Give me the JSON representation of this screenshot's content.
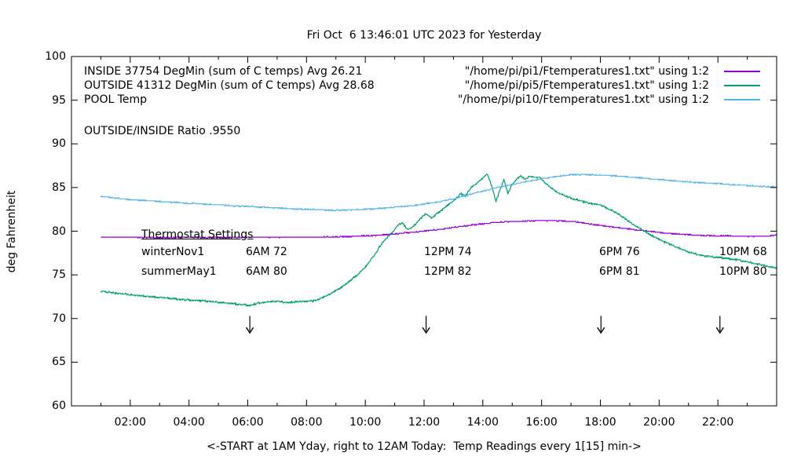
{
  "title": "Fri Oct  6 13:46:01 UTC 2023 for Yesterday",
  "ylabel": "deg Fahrenheit",
  "xlabel": "<-START at 1AM Yday, right to 12AM Today:  Temp Readings every 1[15] min->",
  "annotations": {
    "ratio": "OUTSIDE/INSIDE Ratio .9550",
    "thermostat": {
      "heading": "Thermostat Settings",
      "rows": [
        {
          "label": "winterNov1",
          "cells": [
            "6AM 72",
            "12PM 74",
            "6PM 76",
            "10PM 68"
          ]
        },
        {
          "label": "summerMay1",
          "cells": [
            "6AM 80",
            "12PM 82",
            "6PM 81",
            "10PM 80"
          ]
        }
      ]
    }
  },
  "chart_data": {
    "type": "line",
    "background": "#ffffff",
    "axis_color": "#000000",
    "x_axis": {
      "range_hours": [
        0,
        24
      ],
      "major_tick_hours": [
        2,
        4,
        6,
        8,
        10,
        12,
        14,
        16,
        18,
        20,
        22
      ],
      "major_tick_labels": [
        "02:00",
        "04:00",
        "06:00",
        "08:00",
        "10:00",
        "12:00",
        "14:00",
        "16:00",
        "18:00",
        "20:00",
        "22:00"
      ],
      "minor_tick_hours": [
        1,
        3,
        5,
        7,
        9,
        11,
        13,
        15,
        17,
        19,
        21,
        23
      ]
    },
    "y_axis": {
      "range": [
        60,
        100
      ],
      "ticks": [
        60,
        65,
        70,
        75,
        80,
        85,
        90,
        95,
        100
      ],
      "tick_labels": [
        "60",
        "65",
        "70",
        "75",
        "80",
        "85",
        "90",
        "95",
        "100"
      ]
    },
    "series": [
      {
        "name": "INSIDE",
        "label": "INSIDE 37754 DegMin (sum of C temps) Avg 26.21",
        "file_label": "\"/home/pi/pi1/Ftemperatures1.txt\" using 1:2",
        "color": "#9400d3",
        "noise": 0.045,
        "keypoints": [
          [
            1,
            79.3
          ],
          [
            2,
            79.3
          ],
          [
            3,
            79.25
          ],
          [
            4,
            79.3
          ],
          [
            5,
            79.25
          ],
          [
            6,
            79.3
          ],
          [
            7,
            79.3
          ],
          [
            8,
            79.3
          ],
          [
            9,
            79.35
          ],
          [
            9.5,
            79.4
          ],
          [
            10,
            79.45
          ],
          [
            10.5,
            79.55
          ],
          [
            11,
            79.7
          ],
          [
            11.5,
            79.85
          ],
          [
            12,
            80.0
          ],
          [
            12.5,
            80.2
          ],
          [
            13,
            80.45
          ],
          [
            13.5,
            80.65
          ],
          [
            14,
            80.85
          ],
          [
            14.5,
            81.0
          ],
          [
            15,
            81.1
          ],
          [
            15.5,
            81.15
          ],
          [
            16,
            81.2
          ],
          [
            16.5,
            81.2
          ],
          [
            17,
            81.1
          ],
          [
            17.3,
            81.0
          ],
          [
            17.7,
            80.8
          ],
          [
            18,
            80.65
          ],
          [
            18.5,
            80.45
          ],
          [
            19,
            80.25
          ],
          [
            19.5,
            80.05
          ],
          [
            20,
            79.85
          ],
          [
            20.5,
            79.7
          ],
          [
            21,
            79.6
          ],
          [
            21.5,
            79.5
          ],
          [
            22,
            79.45
          ],
          [
            22.5,
            79.45
          ],
          [
            23,
            79.4
          ],
          [
            23.5,
            79.4
          ],
          [
            23.8,
            79.45
          ],
          [
            24,
            79.6
          ]
        ]
      },
      {
        "name": "OUTSIDE",
        "label": "OUTSIDE 41312 DegMin (sum of C temps) Avg 28.68",
        "file_label": "\"/home/pi/pi5/Ftemperatures1.txt\" using 1:2",
        "color": "#009e73",
        "noise": 0.09,
        "keypoints": [
          [
            1,
            73.15
          ],
          [
            1.3,
            73.0
          ],
          [
            1.7,
            72.85
          ],
          [
            2,
            72.7
          ],
          [
            2.5,
            72.55
          ],
          [
            3,
            72.4
          ],
          [
            3.5,
            72.25
          ],
          [
            4,
            72.1
          ],
          [
            4.5,
            72.0
          ],
          [
            5,
            71.85
          ],
          [
            5.5,
            71.7
          ],
          [
            5.8,
            71.6
          ],
          [
            6.1,
            71.5
          ],
          [
            6.35,
            71.75
          ],
          [
            6.6,
            71.9
          ],
          [
            7,
            71.95
          ],
          [
            7.4,
            71.85
          ],
          [
            7.8,
            71.95
          ],
          [
            8.2,
            72.0
          ],
          [
            8.5,
            72.3
          ],
          [
            8.8,
            72.8
          ],
          [
            9.1,
            73.4
          ],
          [
            9.4,
            74.1
          ],
          [
            9.7,
            74.9
          ],
          [
            10,
            75.9
          ],
          [
            10.3,
            77.2
          ],
          [
            10.6,
            78.8
          ],
          [
            10.9,
            79.8
          ],
          [
            11.1,
            80.6
          ],
          [
            11.25,
            81.0
          ],
          [
            11.45,
            80.15
          ],
          [
            11.65,
            80.6
          ],
          [
            11.85,
            81.3
          ],
          [
            12.05,
            82.0
          ],
          [
            12.25,
            81.5
          ],
          [
            12.45,
            82.0
          ],
          [
            12.7,
            82.7
          ],
          [
            12.9,
            83.2
          ],
          [
            13.1,
            83.8
          ],
          [
            13.25,
            84.3
          ],
          [
            13.4,
            84.0
          ],
          [
            13.6,
            85.0
          ],
          [
            13.75,
            85.4
          ],
          [
            13.9,
            85.8
          ],
          [
            14.05,
            86.3
          ],
          [
            14.15,
            86.6
          ],
          [
            14.3,
            85.2
          ],
          [
            14.45,
            83.4
          ],
          [
            14.6,
            84.9
          ],
          [
            14.72,
            85.9
          ],
          [
            14.85,
            84.3
          ],
          [
            15.0,
            85.4
          ],
          [
            15.15,
            86.0
          ],
          [
            15.3,
            86.3
          ],
          [
            15.45,
            85.9
          ],
          [
            15.6,
            86.35
          ],
          [
            15.75,
            86.1
          ],
          [
            15.9,
            86.2
          ],
          [
            16.05,
            85.8
          ],
          [
            16.2,
            85.3
          ],
          [
            16.35,
            84.9
          ],
          [
            16.6,
            84.3
          ],
          [
            16.9,
            83.9
          ],
          [
            17.2,
            83.6
          ],
          [
            17.6,
            83.2
          ],
          [
            18.0,
            83.0
          ],
          [
            18.3,
            82.5
          ],
          [
            18.6,
            82.0
          ],
          [
            18.9,
            81.3
          ],
          [
            19.2,
            80.6
          ],
          [
            19.5,
            80.0
          ],
          [
            19.8,
            79.4
          ],
          [
            20.1,
            78.9
          ],
          [
            20.5,
            78.3
          ],
          [
            21.0,
            77.6
          ],
          [
            21.5,
            77.2
          ],
          [
            22.0,
            77.0
          ],
          [
            22.5,
            76.8
          ],
          [
            23.0,
            76.5
          ],
          [
            23.4,
            76.2
          ],
          [
            23.7,
            75.95
          ],
          [
            24,
            75.8
          ]
        ]
      },
      {
        "name": "POOL",
        "label": "POOL Temp",
        "file_label": "\"/home/pi/pi10/Ftemperatures1.txt\" using 1:2",
        "color": "#56b4e9",
        "noise": 0.05,
        "keypoints": [
          [
            1,
            83.95
          ],
          [
            1.5,
            83.8
          ],
          [
            2,
            83.6
          ],
          [
            2.5,
            83.5
          ],
          [
            3,
            83.4
          ],
          [
            3.5,
            83.3
          ],
          [
            4,
            83.2
          ],
          [
            4.5,
            83.1
          ],
          [
            5,
            83.0
          ],
          [
            5.5,
            82.9
          ],
          [
            6,
            82.85
          ],
          [
            6.5,
            82.75
          ],
          [
            7,
            82.65
          ],
          [
            7.5,
            82.55
          ],
          [
            8,
            82.5
          ],
          [
            8.5,
            82.45
          ],
          [
            9,
            82.4
          ],
          [
            9.5,
            82.45
          ],
          [
            10,
            82.5
          ],
          [
            10.5,
            82.6
          ],
          [
            11,
            82.75
          ],
          [
            11.5,
            82.9
          ],
          [
            12,
            83.1
          ],
          [
            12.5,
            83.35
          ],
          [
            13,
            83.7
          ],
          [
            13.5,
            84.15
          ],
          [
            14,
            84.6
          ],
          [
            14.5,
            85.0
          ],
          [
            15,
            85.35
          ],
          [
            15.5,
            85.7
          ],
          [
            16,
            86.0
          ],
          [
            16.3,
            86.15
          ],
          [
            16.7,
            86.35
          ],
          [
            17,
            86.45
          ],
          [
            17.4,
            86.5
          ],
          [
            17.8,
            86.45
          ],
          [
            18.2,
            86.4
          ],
          [
            18.7,
            86.3
          ],
          [
            19.2,
            86.15
          ],
          [
            19.7,
            86.0
          ],
          [
            20.2,
            85.85
          ],
          [
            20.7,
            85.7
          ],
          [
            21.2,
            85.6
          ],
          [
            21.7,
            85.5
          ],
          [
            22.2,
            85.4
          ],
          [
            22.7,
            85.3
          ],
          [
            23.2,
            85.2
          ],
          [
            23.6,
            85.1
          ],
          [
            24,
            85.05
          ]
        ]
      }
    ],
    "arrows": {
      "hours": [
        6.07,
        12.07,
        18.02,
        22.07
      ],
      "from_f": 70.3,
      "to_f": 68.35
    }
  }
}
